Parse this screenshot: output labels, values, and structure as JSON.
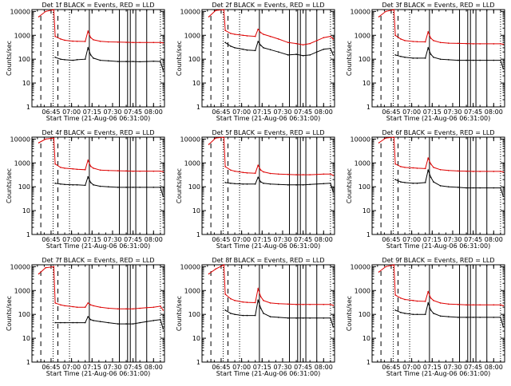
{
  "layout": {
    "rows": 3,
    "cols": 3
  },
  "common": {
    "ylabel": "Counts/sec",
    "xlabel": "Start Time (21-Aug-06 06:31:00)",
    "x_ticks": [
      "06:45",
      "07:00",
      "07:15",
      "07:30",
      "07:45",
      "08:00"
    ],
    "y_ticks": [
      "1",
      "10",
      "100",
      "1000",
      "10000"
    ],
    "y_scale": "log",
    "ylim": [
      1,
      12000
    ],
    "event_color": "#000000",
    "lld_color": "#dd0000"
  },
  "chart_data": [
    {
      "type": "line",
      "title": "Det 1f BLACK = Events, RED = LLD",
      "xlim": [
        "06:31",
        "08:08"
      ],
      "yscale": "log",
      "x": [
        "06:36",
        "06:41",
        "06:47",
        "06:48",
        "06:52",
        "06:55",
        "07:01",
        "07:04",
        "07:10",
        "07:12",
        "07:14",
        "07:16",
        "07:21",
        "07:27",
        "07:34",
        "07:40",
        "07:45",
        "07:50",
        "07:55",
        "08:00",
        "08:05",
        "08:07"
      ],
      "series": [
        {
          "name": "Events",
          "values": [
            null,
            null,
            null,
            120,
            100,
            95,
            90,
            95,
            100,
            300,
            150,
            110,
            90,
            85,
            80,
            80,
            80,
            78,
            80,
            82,
            80,
            35
          ]
        },
        {
          "name": "LLD",
          "values": [
            6000,
            10000,
            12000,
            900,
            700,
            620,
            570,
            560,
            550,
            1500,
            800,
            650,
            560,
            530,
            520,
            510,
            500,
            500,
            500,
            500,
            500,
            480
          ]
        }
      ]
    },
    {
      "type": "line",
      "title": "Det 2f BLACK = Events, RED = LLD",
      "xlim": [
        "06:31",
        "08:08"
      ],
      "yscale": "log",
      "x": [
        "06:36",
        "06:41",
        "06:47",
        "06:48",
        "06:52",
        "06:55",
        "07:01",
        "07:04",
        "07:10",
        "07:12",
        "07:14",
        "07:16",
        "07:21",
        "07:27",
        "07:34",
        "07:40",
        "07:45",
        "07:50",
        "07:55",
        "08:00",
        "08:05",
        "08:07"
      ],
      "series": [
        {
          "name": "Events",
          "values": [
            null,
            null,
            null,
            500,
            350,
            300,
            260,
            240,
            230,
            550,
            380,
            300,
            250,
            200,
            150,
            160,
            140,
            150,
            200,
            260,
            280,
            150
          ]
        },
        {
          "name": "LLD",
          "values": [
            6000,
            11000,
            12000,
            1600,
            1200,
            1100,
            1000,
            950,
            900,
            1800,
            1300,
            1100,
            900,
            700,
            500,
            450,
            400,
            450,
            600,
            800,
            900,
            700
          ]
        }
      ]
    },
    {
      "type": "line",
      "title": "Det 3f BLACK = Events, RED = LLD",
      "xlim": [
        "06:31",
        "08:08"
      ],
      "yscale": "log",
      "x": [
        "06:36",
        "06:41",
        "06:47",
        "06:48",
        "06:52",
        "06:55",
        "07:01",
        "07:04",
        "07:10",
        "07:12",
        "07:14",
        "07:16",
        "07:21",
        "07:27",
        "07:34",
        "07:40",
        "07:45",
        "07:50",
        "07:55",
        "08:00",
        "08:05",
        "08:07"
      ],
      "series": [
        {
          "name": "Events",
          "values": [
            null,
            null,
            null,
            150,
            130,
            120,
            110,
            110,
            110,
            300,
            160,
            120,
            100,
            95,
            90,
            90,
            90,
            90,
            90,
            90,
            90,
            40
          ]
        },
        {
          "name": "LLD",
          "values": [
            6000,
            10000,
            12000,
            1000,
            700,
            600,
            550,
            540,
            530,
            1400,
            750,
            600,
            500,
            470,
            460,
            450,
            440,
            440,
            440,
            440,
            440,
            420
          ]
        }
      ]
    },
    {
      "type": "line",
      "title": "Det 4f BLACK = Events, RED = LLD",
      "xlim": [
        "06:31",
        "08:08"
      ],
      "yscale": "log",
      "x": [
        "06:36",
        "06:41",
        "06:47",
        "06:48",
        "06:52",
        "06:55",
        "07:01",
        "07:04",
        "07:10",
        "07:12",
        "07:14",
        "07:16",
        "07:21",
        "07:27",
        "07:34",
        "07:40",
        "07:45",
        "07:50",
        "07:55",
        "08:00",
        "08:05",
        "08:07"
      ],
      "series": [
        {
          "name": "Events",
          "values": [
            null,
            null,
            null,
            140,
            130,
            125,
            120,
            120,
            115,
            260,
            150,
            120,
            105,
            100,
            95,
            95,
            95,
            95,
            95,
            95,
            95,
            40
          ]
        },
        {
          "name": "LLD",
          "values": [
            7000,
            10000,
            11000,
            900,
            650,
            600,
            560,
            540,
            520,
            1300,
            720,
            600,
            500,
            480,
            470,
            460,
            450,
            450,
            450,
            450,
            450,
            430
          ]
        }
      ]
    },
    {
      "type": "line",
      "title": "Det 5f BLACK = Events, RED = LLD",
      "xlim": [
        "06:31",
        "08:08"
      ],
      "yscale": "log",
      "x": [
        "06:36",
        "06:41",
        "06:47",
        "06:48",
        "06:52",
        "06:55",
        "07:01",
        "07:04",
        "07:10",
        "07:12",
        "07:14",
        "07:16",
        "07:21",
        "07:27",
        "07:34",
        "07:40",
        "07:45",
        "07:50",
        "07:55",
        "08:00",
        "08:05",
        "08:07"
      ],
      "series": [
        {
          "name": "Events",
          "values": [
            null,
            null,
            null,
            150,
            140,
            135,
            130,
            130,
            130,
            250,
            160,
            140,
            130,
            125,
            120,
            120,
            120,
            125,
            130,
            135,
            140,
            60
          ]
        },
        {
          "name": "LLD",
          "values": [
            6000,
            11000,
            12000,
            700,
            500,
            450,
            400,
            380,
            370,
            800,
            500,
            420,
            360,
            340,
            330,
            320,
            320,
            320,
            330,
            340,
            340,
            300
          ]
        }
      ]
    },
    {
      "type": "line",
      "title": "Det 6f BLACK = Events, RED = LLD",
      "xlim": [
        "06:31",
        "08:08"
      ],
      "yscale": "log",
      "x": [
        "06:36",
        "06:41",
        "06:47",
        "06:48",
        "06:52",
        "06:55",
        "07:01",
        "07:04",
        "07:10",
        "07:12",
        "07:14",
        "07:16",
        "07:21",
        "07:27",
        "07:34",
        "07:40",
        "07:45",
        "07:50",
        "07:55",
        "08:00",
        "08:05",
        "08:07"
      ],
      "series": [
        {
          "name": "Events",
          "values": [
            null,
            null,
            null,
            200,
            160,
            150,
            140,
            140,
            150,
            500,
            250,
            160,
            110,
            100,
            95,
            90,
            90,
            90,
            90,
            90,
            90,
            40
          ]
        },
        {
          "name": "LLD",
          "values": [
            7000,
            11000,
            12000,
            900,
            700,
            650,
            620,
            600,
            580,
            1600,
            900,
            650,
            520,
            480,
            460,
            450,
            440,
            440,
            440,
            440,
            440,
            420
          ]
        }
      ]
    },
    {
      "type": "line",
      "title": "Det 7f BLACK = Events, RED = LLD",
      "xlim": [
        "06:31",
        "08:08"
      ],
      "yscale": "log",
      "x": [
        "06:36",
        "06:41",
        "06:47",
        "06:48",
        "06:52",
        "06:55",
        "07:01",
        "07:04",
        "07:10",
        "07:12",
        "07:14",
        "07:16",
        "07:21",
        "07:27",
        "07:34",
        "07:40",
        "07:45",
        "07:50",
        "07:55",
        "08:00",
        "08:05",
        "08:07"
      ],
      "series": [
        {
          "name": "Events",
          "values": [
            null,
            null,
            null,
            45,
            45,
            45,
            45,
            45,
            45,
            80,
            60,
            55,
            50,
            45,
            40,
            40,
            40,
            45,
            50,
            55,
            60,
            25
          ]
        },
        {
          "name": "LLD",
          "values": [
            5000,
            9000,
            10000,
            300,
            250,
            230,
            210,
            200,
            200,
            300,
            250,
            230,
            200,
            180,
            170,
            170,
            170,
            180,
            190,
            200,
            220,
            150
          ]
        }
      ]
    },
    {
      "type": "line",
      "title": "Det 8f BLACK = Events, RED = LLD",
      "xlim": [
        "06:31",
        "08:08"
      ],
      "yscale": "log",
      "x": [
        "06:36",
        "06:41",
        "06:47",
        "06:48",
        "06:52",
        "06:55",
        "07:01",
        "07:04",
        "07:10",
        "07:12",
        "07:14",
        "07:16",
        "07:21",
        "07:27",
        "07:34",
        "07:40",
        "07:45",
        "07:50",
        "07:55",
        "08:00",
        "08:05",
        "08:07"
      ],
      "series": [
        {
          "name": "Events",
          "values": [
            null,
            null,
            null,
            150,
            110,
            100,
            90,
            90,
            90,
            400,
            180,
            110,
            80,
            75,
            70,
            70,
            70,
            70,
            70,
            70,
            70,
            30
          ]
        },
        {
          "name": "LLD",
          "values": [
            5000,
            8000,
            12000,
            700,
            450,
            380,
            330,
            320,
            310,
            1200,
            550,
            380,
            300,
            280,
            270,
            260,
            260,
            260,
            260,
            260,
            260,
            240
          ]
        }
      ]
    },
    {
      "type": "line",
      "title": "Det 9f BLACK = Events, RED = LLD",
      "xlim": [
        "06:31",
        "08:08"
      ],
      "yscale": "log",
      "x": [
        "06:36",
        "06:41",
        "06:47",
        "06:48",
        "06:52",
        "06:55",
        "07:01",
        "07:04",
        "07:10",
        "07:12",
        "07:14",
        "07:16",
        "07:21",
        "07:27",
        "07:34",
        "07:40",
        "07:45",
        "07:50",
        "07:55",
        "08:00",
        "08:05",
        "08:07"
      ],
      "series": [
        {
          "name": "Events",
          "values": [
            null,
            null,
            null,
            150,
            120,
            110,
            100,
            100,
            100,
            300,
            150,
            110,
            85,
            80,
            75,
            75,
            75,
            75,
            75,
            75,
            75,
            30
          ]
        },
        {
          "name": "LLD",
          "values": [
            6000,
            10000,
            12000,
            650,
            480,
            420,
            380,
            360,
            350,
            900,
            480,
            380,
            300,
            270,
            260,
            250,
            250,
            250,
            250,
            250,
            250,
            230
          ]
        }
      ]
    }
  ]
}
